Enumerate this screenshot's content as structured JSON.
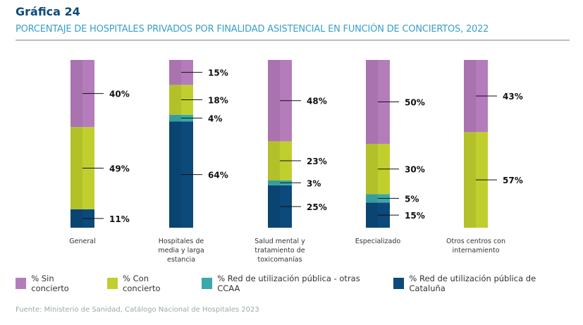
{
  "title": "Gráfica 24",
  "subtitle": "PORCENTAJE DE HOSPITALES PRIVADOS POR FINALIDAD ASISTENCIAL EN FUNCIÓN DE CONCIERTOS, 2022",
  "source": "Fuente: Ministerio de Sanidad, Catálogo Nacional de Hospitales 2023",
  "chart_data": {
    "type": "bar",
    "stacked": true,
    "categories": [
      "General",
      "Hospitales de media y larga estancia",
      "Salud mental y tratamiento de toxicomanías",
      "Especializado",
      "Otros centros con internamiento"
    ],
    "series": [
      {
        "name": "% Red de utilización pública de Cataluña",
        "color": "#0b4a7a",
        "values": [
          11,
          64,
          25,
          15,
          0
        ]
      },
      {
        "name": "% Red de utilización pública - otras CCAA",
        "color": "#3aa9a9",
        "values": [
          0,
          4,
          3,
          5,
          0
        ]
      },
      {
        "name": "% Con concierto",
        "color": "#c0cf2e",
        "values": [
          49,
          18,
          23,
          30,
          57
        ]
      },
      {
        "name": "% Sin concierto",
        "color": "#b57cbc",
        "values": [
          40,
          15,
          48,
          50,
          43
        ]
      }
    ],
    "legend_order": [
      3,
      2,
      1,
      0
    ],
    "legend_position": "bottom",
    "unit": "%"
  }
}
